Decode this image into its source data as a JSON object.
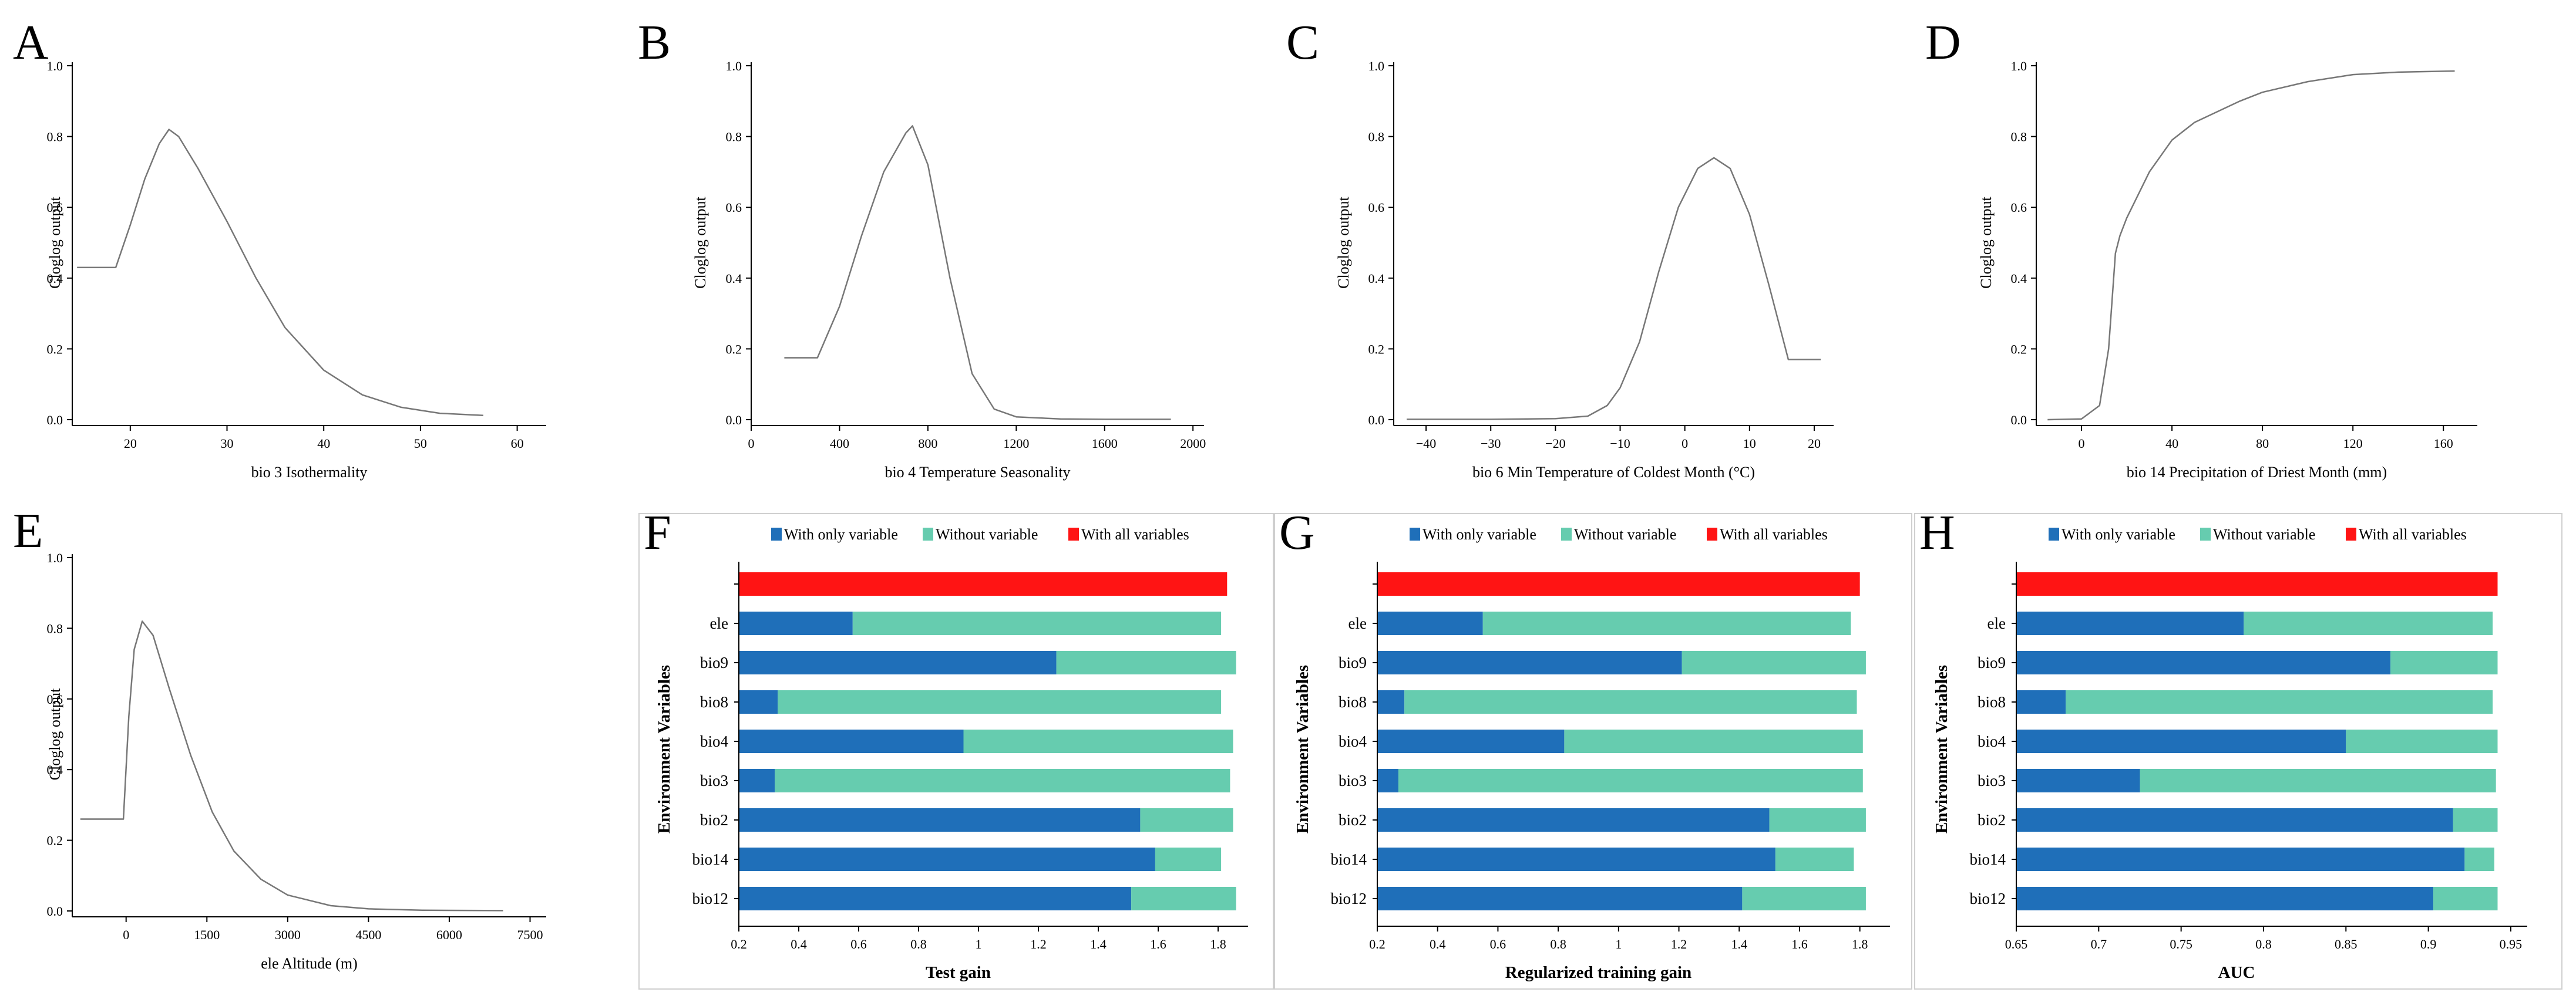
{
  "chart_data": [
    {
      "id": "A",
      "type": "line",
      "letter": "A",
      "xlabel": "bio 3 Isothermality",
      "ylabel": "Cloglog output",
      "xlim": [
        14,
        63
      ],
      "ylim": [
        0,
        1
      ],
      "xticks": [
        "20",
        "30",
        "40",
        "50",
        "60"
      ],
      "yticks": [
        "0.0",
        "0.2",
        "0.4",
        "0.6",
        "0.8",
        "1.0"
      ],
      "x": [
        14.5,
        18.5,
        20,
        21.5,
        23,
        24,
        25,
        27,
        30,
        33,
        36,
        40,
        44,
        48,
        52,
        56.5
      ],
      "y": [
        0.43,
        0.43,
        0.55,
        0.68,
        0.78,
        0.82,
        0.8,
        0.71,
        0.56,
        0.4,
        0.26,
        0.14,
        0.07,
        0.035,
        0.018,
        0.012
      ]
    },
    {
      "id": "B",
      "type": "line",
      "letter": "B",
      "xlabel": "bio 4 Temperature Seasonality",
      "ylabel": "Cloglog output",
      "xlim": [
        0,
        2050
      ],
      "ylim": [
        0,
        1
      ],
      "xticks": [
        "0",
        "400",
        "800",
        "1200",
        "1600",
        "2000"
      ],
      "yticks": [
        "0.0",
        "0.2",
        "0.4",
        "0.6",
        "0.8",
        "1.0"
      ],
      "x": [
        150,
        300,
        400,
        500,
        600,
        700,
        730,
        800,
        900,
        1000,
        1100,
        1200,
        1400,
        1600,
        1900
      ],
      "y": [
        0.175,
        0.175,
        0.32,
        0.52,
        0.7,
        0.81,
        0.83,
        0.72,
        0.4,
        0.13,
        0.03,
        0.008,
        0.002,
        0.001,
        0.001
      ]
    },
    {
      "id": "C",
      "type": "line",
      "letter": "C",
      "xlabel": "bio 6 Min Temperature of Coldest Month (°C)",
      "ylabel": "Cloglog output",
      "xlim": [
        -45,
        23
      ],
      "ylim": [
        0,
        1
      ],
      "xticks": [
        "−40",
        "−30",
        "−20",
        "−10",
        "0",
        "10",
        "20"
      ],
      "yticks": [
        "0.0",
        "0.2",
        "0.4",
        "0.6",
        "0.8",
        "1.0"
      ],
      "x": [
        -43,
        -30,
        -20,
        -15,
        -12,
        -10,
        -7,
        -4,
        -1,
        2,
        4.5,
        7,
        10,
        13,
        16,
        21
      ],
      "y": [
        0.001,
        0.001,
        0.003,
        0.01,
        0.04,
        0.09,
        0.22,
        0.42,
        0.6,
        0.71,
        0.74,
        0.71,
        0.58,
        0.38,
        0.17,
        0.17
      ]
    },
    {
      "id": "D",
      "type": "line",
      "letter": "D",
      "xlabel": "bio 14 Precipitation of Driest Month (mm)",
      "ylabel": "Cloglog output",
      "xlim": [
        -20,
        175
      ],
      "ylim": [
        0,
        1
      ],
      "xticks": [
        "0",
        "40",
        "80",
        "120",
        "160"
      ],
      "yticks": [
        "0.0",
        "0.2",
        "0.4",
        "0.6",
        "0.8",
        "1.0"
      ],
      "x": [
        -15,
        0,
        8,
        12,
        15,
        17,
        20,
        30,
        40,
        50,
        60,
        70,
        80,
        100,
        120,
        140,
        165
      ],
      "y": [
        0.0,
        0.002,
        0.04,
        0.2,
        0.47,
        0.52,
        0.57,
        0.7,
        0.79,
        0.84,
        0.87,
        0.9,
        0.925,
        0.955,
        0.975,
        0.982,
        0.985
      ]
    },
    {
      "id": "E",
      "type": "line",
      "letter": "E",
      "xlabel": "ele Altitude (m)",
      "ylabel": "Cloglog output",
      "xlim": [
        -1000,
        7800
      ],
      "ylim": [
        0,
        1
      ],
      "xticks": [
        "0",
        "1500",
        "3000",
        "4500",
        "6000",
        "7500"
      ],
      "yticks": [
        "0.0",
        "0.2",
        "0.4",
        "0.6",
        "0.8",
        "1.0"
      ],
      "x": [
        -850,
        -50,
        50,
        150,
        300,
        500,
        800,
        1200,
        1600,
        2000,
        2500,
        3000,
        3800,
        4500,
        5500,
        7000
      ],
      "y": [
        0.26,
        0.26,
        0.55,
        0.74,
        0.82,
        0.78,
        0.63,
        0.44,
        0.28,
        0.17,
        0.09,
        0.045,
        0.015,
        0.006,
        0.002,
        0.001
      ]
    },
    {
      "id": "F",
      "type": "bar",
      "letter": "F",
      "xlabel": "Test gain",
      "ylabel": "Environment Variables",
      "xlim": [
        0.2,
        1.9
      ],
      "xticks": [
        "0.2",
        "0.4",
        "0.6",
        "0.8",
        "1",
        "1.2",
        "1.4",
        "1.6",
        "1.8"
      ],
      "legend": [
        "With only variable",
        "Without variable",
        "With all variables"
      ],
      "categories": [
        "",
        "ele",
        "bio9",
        "bio8",
        "bio4",
        "bio3",
        "bio2",
        "bio14",
        "bio12"
      ],
      "all_variables": 1.83,
      "with_only": [
        null,
        0.58,
        1.26,
        0.33,
        0.95,
        0.32,
        1.54,
        1.59,
        1.51
      ],
      "without": [
        null,
        1.81,
        1.86,
        1.81,
        1.85,
        1.84,
        1.85,
        1.81,
        1.86
      ]
    },
    {
      "id": "G",
      "type": "bar",
      "letter": "G",
      "xlabel": "Regularized training gain",
      "ylabel": "Environment Variables",
      "xlim": [
        0.2,
        1.9
      ],
      "xticks": [
        "0.2",
        "0.4",
        "0.6",
        "0.8",
        "1",
        "1.2",
        "1.4",
        "1.6",
        "1.8"
      ],
      "legend": [
        "With only variable",
        "Without variable",
        "With all variables"
      ],
      "categories": [
        "",
        "ele",
        "bio9",
        "bio8",
        "bio4",
        "bio3",
        "bio2",
        "bio14",
        "bio12"
      ],
      "all_variables": 1.8,
      "with_only": [
        null,
        0.55,
        1.21,
        0.29,
        0.82,
        0.27,
        1.5,
        1.52,
        1.41
      ],
      "without": [
        null,
        1.77,
        1.82,
        1.79,
        1.81,
        1.81,
        1.82,
        1.78,
        1.82
      ]
    },
    {
      "id": "H",
      "type": "bar",
      "letter": "H",
      "xlabel": "AUC",
      "ylabel": "Environment Variables",
      "xlim": [
        0.65,
        0.96
      ],
      "xticks": [
        "0.65",
        "0.7",
        "0.75",
        "0.8",
        "0.85",
        "0.9",
        "0.95"
      ],
      "legend": [
        "With only variable",
        "Without variable",
        "With all variables"
      ],
      "categories": [
        "",
        "ele",
        "bio9",
        "bio8",
        "bio4",
        "bio3",
        "bio2",
        "bio14",
        "bio12"
      ],
      "all_variables": 0.942,
      "with_only": [
        null,
        0.788,
        0.877,
        0.68,
        0.85,
        0.725,
        0.915,
        0.922,
        0.903
      ],
      "without": [
        null,
        0.939,
        0.942,
        0.939,
        0.942,
        0.941,
        0.942,
        0.94,
        0.942
      ]
    }
  ],
  "colors": {
    "with_only": "#1f6fb9",
    "without": "#66ccaf",
    "all": "#ff1414",
    "line": "#777777"
  }
}
